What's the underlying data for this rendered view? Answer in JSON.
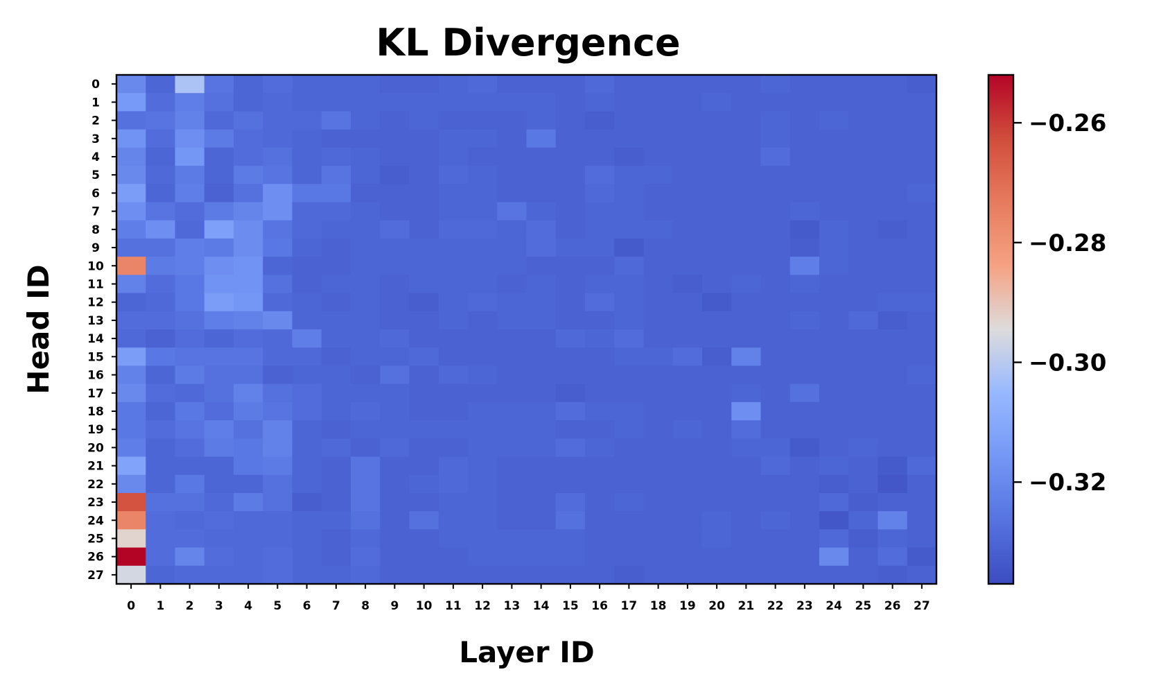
{
  "chart_data": {
    "type": "heatmap",
    "title": "KL Divergence",
    "xlabel": "Layer ID",
    "ylabel": "Head ID",
    "x_tick_labels": [
      "0",
      "1",
      "2",
      "3",
      "4",
      "5",
      "6",
      "7",
      "8",
      "9",
      "10",
      "11",
      "12",
      "13",
      "14",
      "15",
      "16",
      "17",
      "18",
      "19",
      "20",
      "21",
      "22",
      "23",
      "24",
      "25",
      "26",
      "27"
    ],
    "y_tick_labels": [
      "0",
      "1",
      "2",
      "3",
      "4",
      "5",
      "6",
      "7",
      "8",
      "9",
      "10",
      "11",
      "12",
      "13",
      "14",
      "15",
      "16",
      "17",
      "18",
      "19",
      "20",
      "21",
      "22",
      "23",
      "24",
      "25",
      "26",
      "27"
    ],
    "colormap": "coolwarm",
    "colorbar": {
      "range": [
        -0.337,
        -0.252
      ],
      "ticks": [
        -0.26,
        -0.28,
        -0.3,
        -0.32
      ],
      "tick_labels": [
        "−0.26",
        "−0.28",
        "−0.30",
        "−0.32"
      ]
    },
    "values": [
      [
        -0.32,
        -0.33,
        -0.302,
        -0.326,
        -0.33,
        -0.328,
        -0.33,
        -0.33,
        -0.33,
        -0.331,
        -0.331,
        -0.33,
        -0.329,
        -0.331,
        -0.331,
        -0.331,
        -0.329,
        -0.331,
        -0.331,
        -0.331,
        -0.331,
        -0.331,
        -0.33,
        -0.331,
        -0.331,
        -0.331,
        -0.331,
        -0.332
      ],
      [
        -0.315,
        -0.328,
        -0.323,
        -0.327,
        -0.33,
        -0.329,
        -0.33,
        -0.33,
        -0.33,
        -0.33,
        -0.33,
        -0.33,
        -0.33,
        -0.33,
        -0.33,
        -0.331,
        -0.33,
        -0.331,
        -0.331,
        -0.331,
        -0.33,
        -0.331,
        -0.331,
        -0.331,
        -0.331,
        -0.331,
        -0.331,
        -0.331
      ],
      [
        -0.327,
        -0.326,
        -0.322,
        -0.329,
        -0.327,
        -0.329,
        -0.329,
        -0.326,
        -0.33,
        -0.331,
        -0.33,
        -0.331,
        -0.331,
        -0.331,
        -0.33,
        -0.331,
        -0.332,
        -0.331,
        -0.331,
        -0.331,
        -0.331,
        -0.331,
        -0.33,
        -0.331,
        -0.33,
        -0.331,
        -0.331,
        -0.331
      ],
      [
        -0.317,
        -0.328,
        -0.318,
        -0.324,
        -0.328,
        -0.329,
        -0.33,
        -0.331,
        -0.331,
        -0.331,
        -0.331,
        -0.33,
        -0.33,
        -0.331,
        -0.325,
        -0.331,
        -0.331,
        -0.331,
        -0.331,
        -0.331,
        -0.331,
        -0.331,
        -0.33,
        -0.331,
        -0.331,
        -0.331,
        -0.331,
        -0.331
      ],
      [
        -0.321,
        -0.33,
        -0.316,
        -0.33,
        -0.328,
        -0.327,
        -0.33,
        -0.329,
        -0.33,
        -0.331,
        -0.331,
        -0.33,
        -0.331,
        -0.331,
        -0.331,
        -0.331,
        -0.331,
        -0.332,
        -0.331,
        -0.331,
        -0.331,
        -0.331,
        -0.328,
        -0.331,
        -0.331,
        -0.331,
        -0.331,
        -0.331
      ],
      [
        -0.32,
        -0.329,
        -0.324,
        -0.33,
        -0.324,
        -0.326,
        -0.33,
        -0.326,
        -0.33,
        -0.332,
        -0.331,
        -0.329,
        -0.33,
        -0.331,
        -0.331,
        -0.331,
        -0.328,
        -0.33,
        -0.33,
        -0.331,
        -0.331,
        -0.331,
        -0.331,
        -0.331,
        -0.331,
        -0.331,
        -0.331,
        -0.331
      ],
      [
        -0.314,
        -0.33,
        -0.323,
        -0.331,
        -0.327,
        -0.318,
        -0.325,
        -0.325,
        -0.331,
        -0.331,
        -0.331,
        -0.33,
        -0.33,
        -0.331,
        -0.331,
        -0.331,
        -0.329,
        -0.33,
        -0.331,
        -0.331,
        -0.331,
        -0.331,
        -0.331,
        -0.331,
        -0.331,
        -0.331,
        -0.331,
        -0.33
      ],
      [
        -0.318,
        -0.326,
        -0.328,
        -0.324,
        -0.321,
        -0.318,
        -0.329,
        -0.329,
        -0.33,
        -0.331,
        -0.331,
        -0.33,
        -0.33,
        -0.326,
        -0.33,
        -0.331,
        -0.33,
        -0.33,
        -0.331,
        -0.331,
        -0.331,
        -0.331,
        -0.331,
        -0.33,
        -0.331,
        -0.331,
        -0.331,
        -0.331
      ],
      [
        -0.323,
        -0.318,
        -0.329,
        -0.313,
        -0.319,
        -0.326,
        -0.329,
        -0.33,
        -0.33,
        -0.328,
        -0.331,
        -0.329,
        -0.329,
        -0.33,
        -0.328,
        -0.331,
        -0.33,
        -0.33,
        -0.33,
        -0.331,
        -0.331,
        -0.331,
        -0.331,
        -0.333,
        -0.33,
        -0.331,
        -0.332,
        -0.331
      ],
      [
        -0.327,
        -0.327,
        -0.323,
        -0.324,
        -0.319,
        -0.325,
        -0.33,
        -0.331,
        -0.33,
        -0.33,
        -0.33,
        -0.33,
        -0.33,
        -0.33,
        -0.328,
        -0.33,
        -0.33,
        -0.333,
        -0.331,
        -0.331,
        -0.331,
        -0.331,
        -0.331,
        -0.332,
        -0.33,
        -0.331,
        -0.331,
        -0.331
      ],
      [
        -0.276,
        -0.324,
        -0.323,
        -0.318,
        -0.317,
        -0.33,
        -0.331,
        -0.331,
        -0.33,
        -0.33,
        -0.33,
        -0.33,
        -0.33,
        -0.33,
        -0.331,
        -0.331,
        -0.331,
        -0.329,
        -0.331,
        -0.331,
        -0.331,
        -0.331,
        -0.331,
        -0.323,
        -0.33,
        -0.331,
        -0.331,
        -0.331
      ],
      [
        -0.322,
        -0.328,
        -0.325,
        -0.317,
        -0.317,
        -0.327,
        -0.331,
        -0.33,
        -0.33,
        -0.331,
        -0.33,
        -0.33,
        -0.33,
        -0.331,
        -0.33,
        -0.331,
        -0.33,
        -0.33,
        -0.331,
        -0.332,
        -0.331,
        -0.33,
        -0.331,
        -0.33,
        -0.331,
        -0.331,
        -0.331,
        -0.331
      ],
      [
        -0.33,
        -0.329,
        -0.325,
        -0.314,
        -0.316,
        -0.329,
        -0.33,
        -0.331,
        -0.33,
        -0.331,
        -0.332,
        -0.33,
        -0.329,
        -0.33,
        -0.33,
        -0.331,
        -0.328,
        -0.33,
        -0.331,
        -0.331,
        -0.333,
        -0.331,
        -0.331,
        -0.331,
        -0.331,
        -0.331,
        -0.33,
        -0.33
      ],
      [
        -0.328,
        -0.328,
        -0.327,
        -0.323,
        -0.322,
        -0.32,
        -0.33,
        -0.33,
        -0.33,
        -0.331,
        -0.331,
        -0.33,
        -0.331,
        -0.33,
        -0.33,
        -0.331,
        -0.331,
        -0.33,
        -0.331,
        -0.331,
        -0.331,
        -0.331,
        -0.331,
        -0.33,
        -0.331,
        -0.329,
        -0.332,
        -0.331
      ],
      [
        -0.329,
        -0.331,
        -0.328,
        -0.33,
        -0.328,
        -0.329,
        -0.323,
        -0.33,
        -0.33,
        -0.329,
        -0.331,
        -0.331,
        -0.331,
        -0.331,
        -0.331,
        -0.329,
        -0.33,
        -0.328,
        -0.331,
        -0.331,
        -0.331,
        -0.331,
        -0.331,
        -0.331,
        -0.331,
        -0.331,
        -0.331,
        -0.331
      ],
      [
        -0.314,
        -0.325,
        -0.326,
        -0.326,
        -0.326,
        -0.329,
        -0.329,
        -0.331,
        -0.33,
        -0.33,
        -0.329,
        -0.331,
        -0.331,
        -0.331,
        -0.331,
        -0.331,
        -0.331,
        -0.33,
        -0.33,
        -0.328,
        -0.332,
        -0.322,
        -0.331,
        -0.331,
        -0.331,
        -0.331,
        -0.331,
        -0.331
      ],
      [
        -0.322,
        -0.33,
        -0.324,
        -0.327,
        -0.327,
        -0.331,
        -0.33,
        -0.33,
        -0.331,
        -0.327,
        -0.331,
        -0.329,
        -0.33,
        -0.331,
        -0.331,
        -0.331,
        -0.331,
        -0.331,
        -0.331,
        -0.331,
        -0.331,
        -0.331,
        -0.331,
        -0.331,
        -0.331,
        -0.331,
        -0.331,
        -0.33
      ],
      [
        -0.32,
        -0.328,
        -0.329,
        -0.327,
        -0.322,
        -0.327,
        -0.328,
        -0.33,
        -0.33,
        -0.33,
        -0.331,
        -0.331,
        -0.331,
        -0.331,
        -0.331,
        -0.332,
        -0.331,
        -0.331,
        -0.331,
        -0.331,
        -0.331,
        -0.33,
        -0.331,
        -0.327,
        -0.331,
        -0.331,
        -0.331,
        -0.331
      ],
      [
        -0.325,
        -0.33,
        -0.325,
        -0.328,
        -0.324,
        -0.326,
        -0.328,
        -0.33,
        -0.329,
        -0.33,
        -0.331,
        -0.331,
        -0.33,
        -0.33,
        -0.33,
        -0.328,
        -0.33,
        -0.33,
        -0.331,
        -0.331,
        -0.331,
        -0.318,
        -0.331,
        -0.331,
        -0.331,
        -0.331,
        -0.331,
        -0.331
      ],
      [
        -0.325,
        -0.328,
        -0.326,
        -0.323,
        -0.327,
        -0.322,
        -0.33,
        -0.331,
        -0.33,
        -0.33,
        -0.33,
        -0.33,
        -0.33,
        -0.33,
        -0.33,
        -0.331,
        -0.331,
        -0.33,
        -0.331,
        -0.33,
        -0.331,
        -0.328,
        -0.331,
        -0.331,
        -0.331,
        -0.331,
        -0.331,
        -0.331
      ],
      [
        -0.323,
        -0.33,
        -0.328,
        -0.324,
        -0.325,
        -0.322,
        -0.33,
        -0.329,
        -0.331,
        -0.329,
        -0.331,
        -0.331,
        -0.33,
        -0.33,
        -0.33,
        -0.328,
        -0.33,
        -0.331,
        -0.331,
        -0.331,
        -0.331,
        -0.33,
        -0.33,
        -0.333,
        -0.331,
        -0.33,
        -0.331,
        -0.331
      ],
      [
        -0.312,
        -0.33,
        -0.33,
        -0.33,
        -0.325,
        -0.324,
        -0.33,
        -0.331,
        -0.326,
        -0.331,
        -0.331,
        -0.329,
        -0.33,
        -0.331,
        -0.331,
        -0.331,
        -0.331,
        -0.331,
        -0.331,
        -0.331,
        -0.331,
        -0.331,
        -0.329,
        -0.331,
        -0.33,
        -0.331,
        -0.333,
        -0.329
      ],
      [
        -0.32,
        -0.33,
        -0.325,
        -0.33,
        -0.33,
        -0.327,
        -0.33,
        -0.331,
        -0.326,
        -0.331,
        -0.33,
        -0.329,
        -0.33,
        -0.331,
        -0.331,
        -0.331,
        -0.331,
        -0.331,
        -0.331,
        -0.331,
        -0.331,
        -0.331,
        -0.331,
        -0.331,
        -0.332,
        -0.331,
        -0.334,
        -0.331
      ],
      [
        -0.264,
        -0.327,
        -0.327,
        -0.329,
        -0.324,
        -0.327,
        -0.332,
        -0.331,
        -0.326,
        -0.331,
        -0.331,
        -0.33,
        -0.33,
        -0.331,
        -0.331,
        -0.328,
        -0.331,
        -0.33,
        -0.331,
        -0.331,
        -0.331,
        -0.331,
        -0.331,
        -0.331,
        -0.329,
        -0.332,
        -0.331,
        -0.331
      ],
      [
        -0.276,
        -0.328,
        -0.329,
        -0.328,
        -0.329,
        -0.329,
        -0.33,
        -0.33,
        -0.327,
        -0.331,
        -0.327,
        -0.33,
        -0.33,
        -0.331,
        -0.331,
        -0.327,
        -0.331,
        -0.331,
        -0.331,
        -0.331,
        -0.33,
        -0.331,
        -0.33,
        -0.331,
        -0.334,
        -0.33,
        -0.322,
        -0.331
      ],
      [
        -0.293,
        -0.328,
        -0.328,
        -0.329,
        -0.329,
        -0.329,
        -0.33,
        -0.331,
        -0.329,
        -0.331,
        -0.331,
        -0.33,
        -0.33,
        -0.33,
        -0.33,
        -0.33,
        -0.331,
        -0.331,
        -0.331,
        -0.331,
        -0.33,
        -0.331,
        -0.331,
        -0.331,
        -0.329,
        -0.332,
        -0.33,
        -0.331
      ],
      [
        -0.252,
        -0.328,
        -0.321,
        -0.328,
        -0.329,
        -0.328,
        -0.33,
        -0.331,
        -0.328,
        -0.331,
        -0.331,
        -0.331,
        -0.33,
        -0.33,
        -0.33,
        -0.33,
        -0.331,
        -0.331,
        -0.331,
        -0.331,
        -0.331,
        -0.331,
        -0.331,
        -0.331,
        -0.32,
        -0.331,
        -0.328,
        -0.333
      ],
      [
        -0.296,
        -0.33,
        -0.329,
        -0.329,
        -0.329,
        -0.328,
        -0.33,
        -0.33,
        -0.329,
        -0.331,
        -0.331,
        -0.331,
        -0.331,
        -0.331,
        -0.331,
        -0.331,
        -0.331,
        -0.332,
        -0.331,
        -0.331,
        -0.331,
        -0.331,
        -0.331,
        -0.331,
        -0.331,
        -0.331,
        -0.332,
        -0.331
      ]
    ]
  }
}
